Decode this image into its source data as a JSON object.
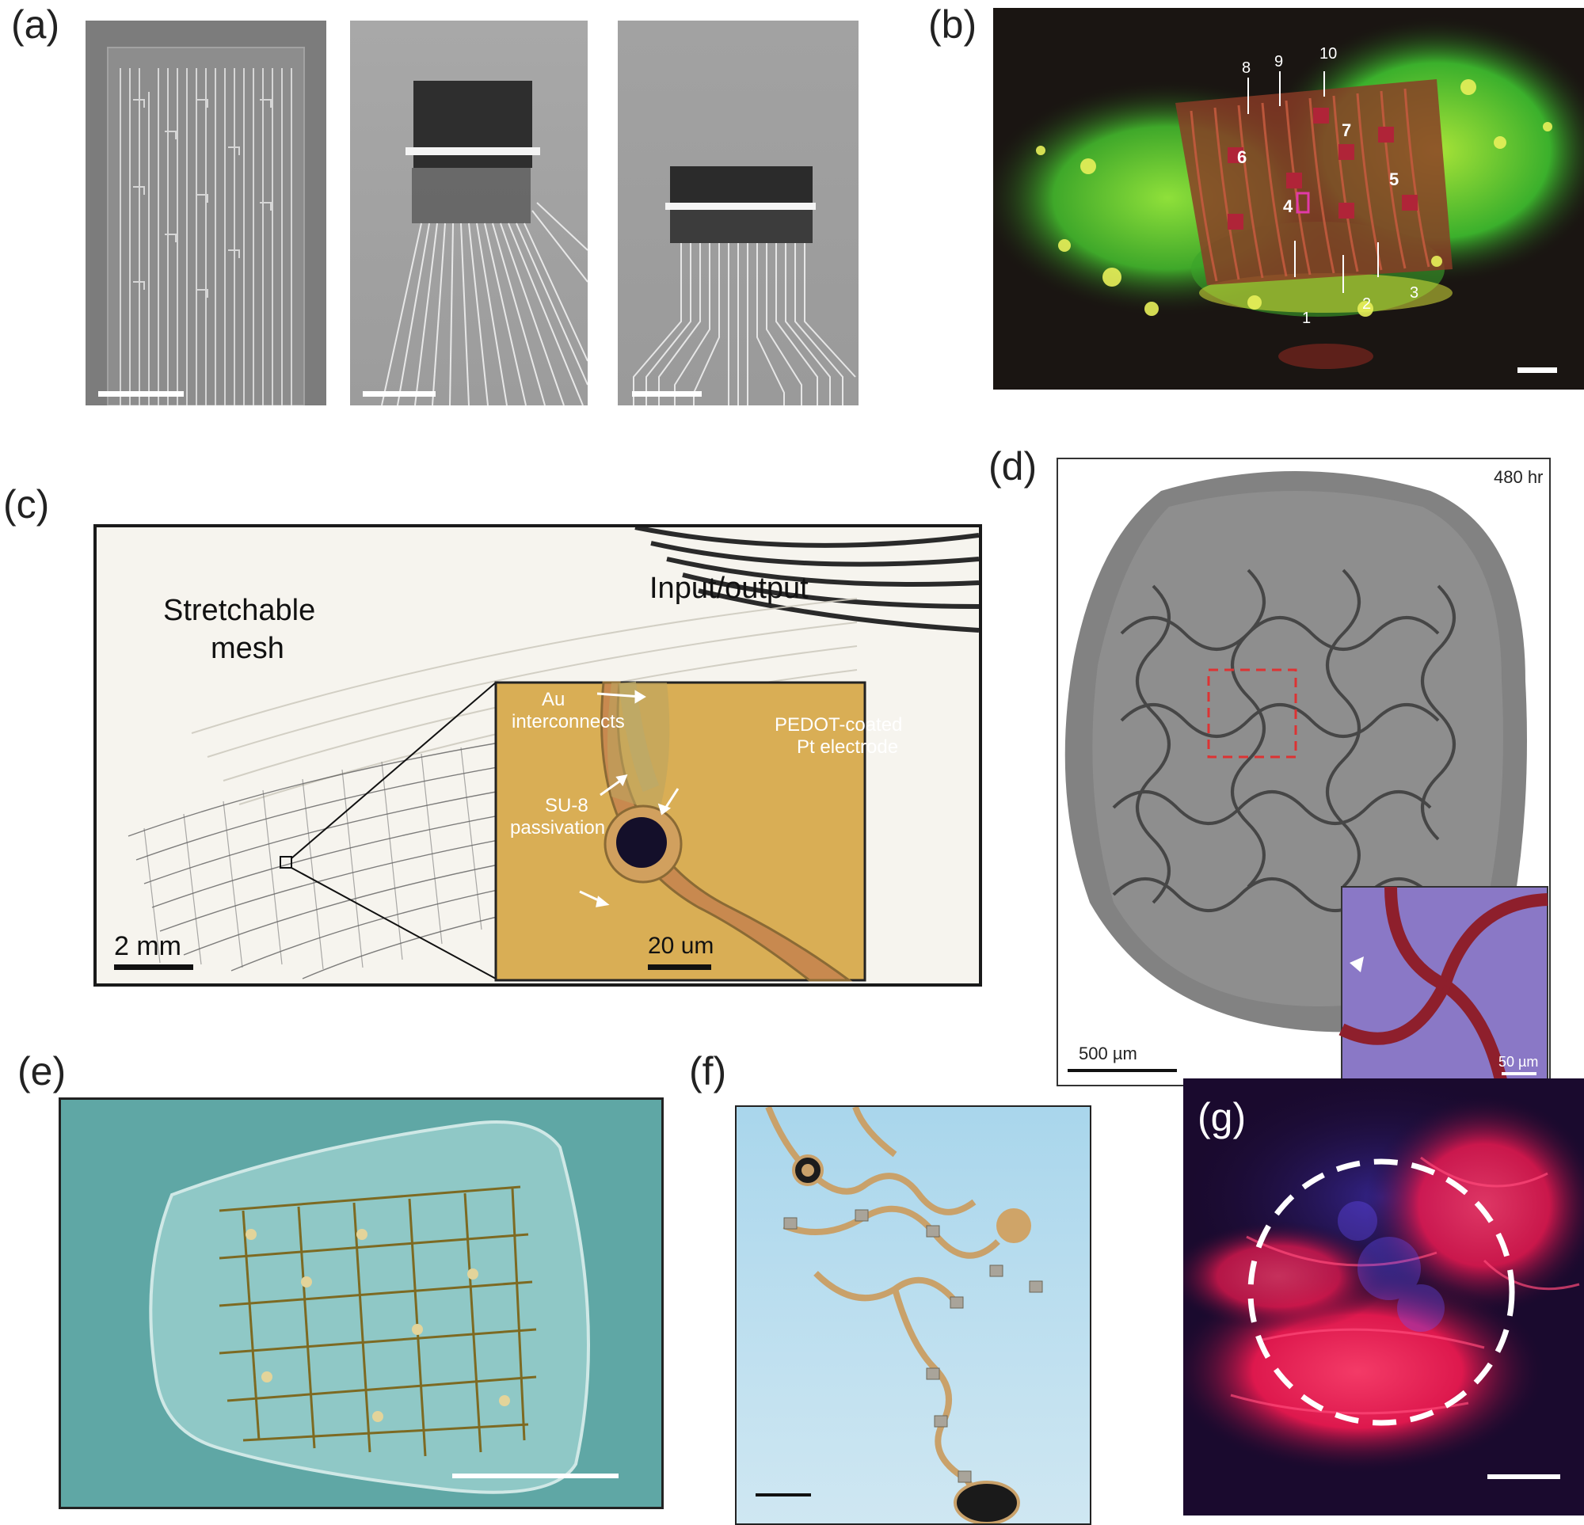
{
  "panel_labels": {
    "a": "(a)",
    "b": "(b)",
    "c": "(c)",
    "d": "(d)",
    "e": "(e)",
    "f": "(f)",
    "g": "(g)"
  },
  "panel_b": {
    "electrode_numbers": [
      "1",
      "2",
      "3",
      "4",
      "5",
      "6",
      "7",
      "8",
      "9",
      "10"
    ]
  },
  "panel_c": {
    "input_output": "Input/output",
    "stretchable_line1": "Stretchable",
    "stretchable_line2": "mesh",
    "au_line1": "Au",
    "au_line2": "interconnects",
    "pedot_line1": "PEDOT-coated",
    "pedot_line2": "Pt electrode",
    "su8_line1": "SU-8",
    "su8_line2": "passivation",
    "scale_main": "2 mm",
    "scale_inset": "20 um"
  },
  "panel_d": {
    "time": "480 hr",
    "scale_main": "500 µm",
    "scale_inset": "50 µm"
  },
  "colors": {
    "fluor_green": "#3fc12a",
    "fluor_red": "#c8322a",
    "inset_gold": "#d9ae55",
    "inset_violet": "#8a78c6",
    "mesh_red": "#8e1f2c",
    "gel_teal": "#5fa7a5",
    "paper_blue": "#a9d6ec",
    "g_magenta": "#e8194f"
  }
}
